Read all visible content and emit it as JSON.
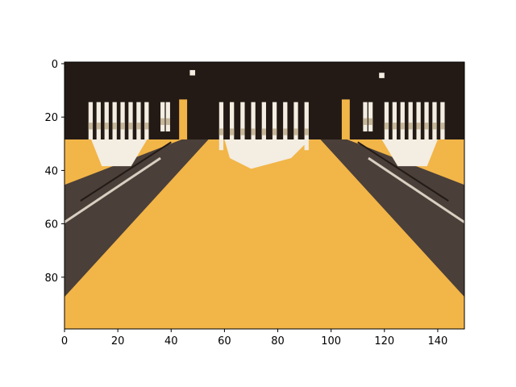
{
  "chart_data": {
    "type": "heatmap",
    "title": "",
    "xlabel": "",
    "ylabel": "",
    "x_range": [
      0,
      150
    ],
    "y_range": [
      0,
      100
    ],
    "y_inverted": true,
    "x_ticks": [
      "0",
      "20",
      "40",
      "60",
      "80",
      "100",
      "120",
      "140"
    ],
    "y_ticks": [
      "0",
      "20",
      "40",
      "60",
      "80"
    ],
    "grid": false,
    "legend": "none"
  },
  "palette": {
    "lane": "#f2b547",
    "gutter": "#4a3f39",
    "backdrop": "#231a16",
    "pin": "#f3ede2",
    "pin_shadow": "#c7b79a",
    "stripe": "#d8cfc0"
  }
}
